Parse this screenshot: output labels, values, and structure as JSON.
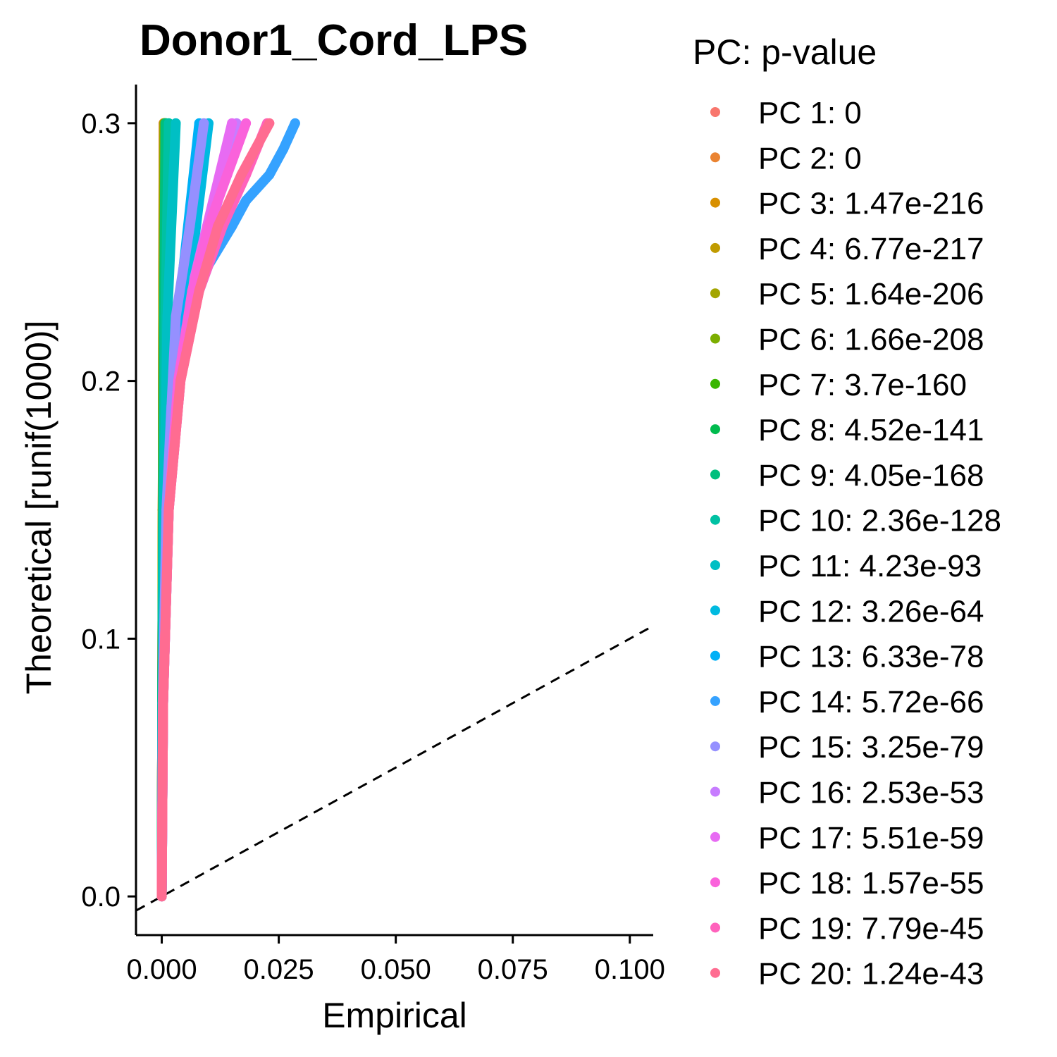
{
  "chart_data": {
    "type": "scatter",
    "title": "Donor1_Cord_LPS",
    "xlabel": "Empirical",
    "ylabel": "Theoretical [runif(1000)]",
    "xlim": [
      -0.0055,
      0.105
    ],
    "ylim": [
      -0.015,
      0.315
    ],
    "x_ticks": [
      0.0,
      0.025,
      0.05,
      0.075,
      0.1
    ],
    "x_tick_labels": [
      "0.000",
      "0.025",
      "0.050",
      "0.075",
      "0.100"
    ],
    "y_ticks": [
      0.0,
      0.1,
      0.2,
      0.3
    ],
    "y_tick_labels": [
      "0.0",
      "0.1",
      "0.2",
      "0.3"
    ],
    "grid": false,
    "reference_line": {
      "slope": 1,
      "intercept": 0,
      "style": "dashed",
      "color": "#000000"
    },
    "legend": {
      "title": "PC: p-value",
      "placement": "right",
      "entries": [
        {
          "label": "PC 1: 0",
          "color": "#F8766D"
        },
        {
          "label": "PC 2: 0",
          "color": "#EA8331"
        },
        {
          "label": "PC 3: 1.47e-216",
          "color": "#D89000"
        },
        {
          "label": "PC 4: 6.77e-217",
          "color": "#C09B00"
        },
        {
          "label": "PC 5: 1.64e-206",
          "color": "#A3A500"
        },
        {
          "label": "PC 6: 1.66e-208",
          "color": "#7CAE00"
        },
        {
          "label": "PC 7: 3.7e-160",
          "color": "#39B600"
        },
        {
          "label": "PC 8: 4.52e-141",
          "color": "#00BB4E"
        },
        {
          "label": "PC 9: 4.05e-168",
          "color": "#00BF7D"
        },
        {
          "label": "PC 10: 2.36e-128",
          "color": "#00C1A3"
        },
        {
          "label": "PC 11: 4.23e-93",
          "color": "#00BFC4"
        },
        {
          "label": "PC 12: 3.26e-64",
          "color": "#00BAE0"
        },
        {
          "label": "PC 13: 6.33e-78",
          "color": "#00B0F6"
        },
        {
          "label": "PC 14: 5.72e-66",
          "color": "#35A2FF"
        },
        {
          "label": "PC 15: 3.25e-79",
          "color": "#9590FF"
        },
        {
          "label": "PC 16: 2.53e-53",
          "color": "#C77CFF"
        },
        {
          "label": "PC 17: 5.51e-59",
          "color": "#E76BF3"
        },
        {
          "label": "PC 18: 1.57e-55",
          "color": "#FA62DB"
        },
        {
          "label": "PC 19: 7.79e-45",
          "color": "#FF62BC"
        },
        {
          "label": "PC 20: 1.24e-43",
          "color": "#FF6C91"
        }
      ]
    },
    "series": [
      {
        "color": "#F8766D",
        "x": [
          0,
          0.0001,
          0.0002,
          0.0003,
          0.0004
        ],
        "y": [
          0,
          0.075,
          0.15,
          0.225,
          0.3
        ]
      },
      {
        "color": "#EA8331",
        "x": [
          0,
          0.0001,
          0.0002,
          0.0003,
          0.0004
        ],
        "y": [
          0,
          0.075,
          0.15,
          0.225,
          0.3
        ]
      },
      {
        "color": "#D89000",
        "x": [
          0,
          0.0001,
          0.0002,
          0.0003,
          0.0005
        ],
        "y": [
          0,
          0.075,
          0.15,
          0.225,
          0.3
        ]
      },
      {
        "color": "#C09B00",
        "x": [
          0,
          0.0001,
          0.0002,
          0.0003,
          0.0005
        ],
        "y": [
          0,
          0.075,
          0.15,
          0.225,
          0.3
        ]
      },
      {
        "color": "#A3A500",
        "x": [
          0,
          0.0001,
          0.0002,
          0.0004,
          0.0006
        ],
        "y": [
          0,
          0.075,
          0.15,
          0.225,
          0.3
        ]
      },
      {
        "color": "#7CAE00",
        "x": [
          0,
          0.0001,
          0.0002,
          0.0004,
          0.0006
        ],
        "y": [
          0,
          0.075,
          0.15,
          0.225,
          0.3
        ]
      },
      {
        "color": "#39B600",
        "x": [
          0,
          0.0001,
          0.0003,
          0.0005,
          0.0008
        ],
        "y": [
          0,
          0.075,
          0.15,
          0.225,
          0.3
        ]
      },
      {
        "color": "#00BB4E",
        "x": [
          0,
          0.0001,
          0.0003,
          0.0006,
          0.001
        ],
        "y": [
          0,
          0.075,
          0.15,
          0.225,
          0.3
        ]
      },
      {
        "color": "#00BF7D",
        "x": [
          0,
          0.0001,
          0.0003,
          0.0005,
          0.0008
        ],
        "y": [
          0,
          0.075,
          0.15,
          0.225,
          0.3
        ]
      },
      {
        "color": "#00C1A3",
        "x": [
          0,
          0.0001,
          0.0003,
          0.0008,
          0.0015
        ],
        "y": [
          0,
          0.075,
          0.15,
          0.225,
          0.3
        ]
      },
      {
        "color": "#00BFC4",
        "x": [
          0,
          0.0002,
          0.0005,
          0.0012,
          0.003
        ],
        "y": [
          0,
          0.075,
          0.15,
          0.225,
          0.3
        ]
      },
      {
        "color": "#00BAE0",
        "x": [
          0,
          0.0003,
          0.0015,
          0.005,
          0.01
        ],
        "y": [
          0,
          0.075,
          0.15,
          0.225,
          0.3
        ]
      },
      {
        "color": "#00B0F6",
        "x": [
          0,
          0.0003,
          0.001,
          0.0035,
          0.008
        ],
        "y": [
          0,
          0.075,
          0.15,
          0.225,
          0.3
        ]
      },
      {
        "color": "#35A2FF",
        "x": [
          0,
          0.0003,
          0.001,
          0.002,
          0.005,
          0.01,
          0.015,
          0.018,
          0.023,
          0.026,
          0.0285
        ],
        "y": [
          0,
          0.075,
          0.15,
          0.19,
          0.22,
          0.245,
          0.26,
          0.27,
          0.28,
          0.29,
          0.3
        ]
      },
      {
        "color": "#9590FF",
        "x": [
          0,
          0.0002,
          0.001,
          0.003,
          0.006,
          0.009
        ],
        "y": [
          0,
          0.075,
          0.15,
          0.225,
          0.26,
          0.3
        ]
      },
      {
        "color": "#C77CFF",
        "x": [
          0,
          0.0003,
          0.0015,
          0.004,
          0.008,
          0.012,
          0.016
        ],
        "y": [
          0,
          0.075,
          0.15,
          0.2,
          0.24,
          0.27,
          0.3
        ]
      },
      {
        "color": "#E76BF3",
        "x": [
          0,
          0.0003,
          0.0015,
          0.004,
          0.007,
          0.011,
          0.015
        ],
        "y": [
          0,
          0.075,
          0.15,
          0.2,
          0.24,
          0.27,
          0.3
        ]
      },
      {
        "color": "#FA62DB",
        "x": [
          0,
          0.0003,
          0.0015,
          0.0035,
          0.0065,
          0.01,
          0.014,
          0.018
        ],
        "y": [
          0,
          0.075,
          0.15,
          0.2,
          0.235,
          0.26,
          0.28,
          0.3
        ]
      },
      {
        "color": "#FF62BC",
        "x": [
          0,
          0.0003,
          0.0015,
          0.004,
          0.008,
          0.013,
          0.018,
          0.0225
        ],
        "y": [
          0,
          0.075,
          0.15,
          0.2,
          0.235,
          0.26,
          0.28,
          0.3
        ]
      },
      {
        "color": "#FF6C91",
        "x": [
          0,
          0.0003,
          0.0015,
          0.004,
          0.008,
          0.012,
          0.017,
          0.023
        ],
        "y": [
          0,
          0.075,
          0.15,
          0.2,
          0.235,
          0.26,
          0.28,
          0.3
        ]
      }
    ]
  }
}
